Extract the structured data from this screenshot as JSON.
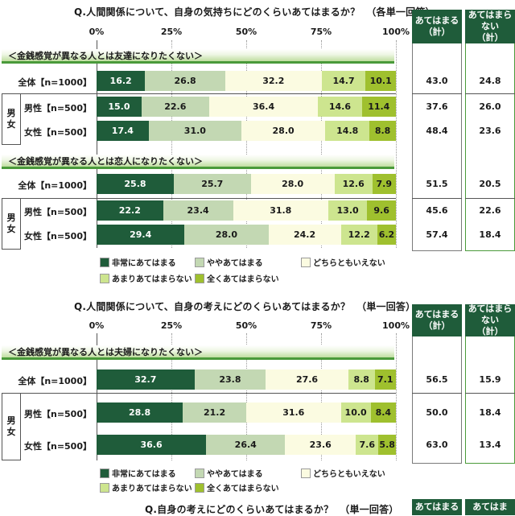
{
  "colors": {
    "segments": [
      "#1f5c3a",
      "#c3d8b3",
      "#fbfbe1",
      "#cde58f",
      "#9fc02e"
    ],
    "segment_text": [
      "#ffffff",
      "#1a1a1a",
      "#1a1a1a",
      "#1a1a1a",
      "#1a1a1a"
    ],
    "header_fill": "#1f5c3a",
    "section_rule": "#4a9a3a"
  },
  "legend_labels": [
    "非常にあてはまる",
    "ややあてはまる",
    "どちらともいえない",
    "あまりあてはまらない",
    "全くあてはまらない"
  ],
  "sex_box_label": [
    "男",
    "女"
  ],
  "chart_data": [
    {
      "type": "bar",
      "orientation": "horizontal-stacked-100",
      "title": "Q.人間関係について、自身の気持ちにどのくらいあてはまるか？",
      "subtitle": "（各単一回答）",
      "axis_ticks": [
        "0%",
        "25%",
        "50%",
        "75%",
        "100%"
      ],
      "xlim": [
        0,
        100
      ],
      "grid": true,
      "legend_position": "bottom",
      "series_names": [
        "非常にあてはまる",
        "ややあてはまる",
        "どちらともいえない",
        "あまりあてはまらない",
        "全くあてはまらない"
      ],
      "total_headers": [
        [
          "あてはまる",
          "（計）"
        ],
        [
          "あてはまら",
          "ない",
          "（計）"
        ]
      ],
      "sections": [
        {
          "title": "＜金銭感覚が異なる人とは友達になりたくない＞",
          "rows": [
            {
              "label": "全体【n=1000】",
              "values": [
                16.2,
                26.8,
                32.2,
                14.7,
                10.1
              ],
              "totals": [
                "43.0",
                "24.8"
              ]
            },
            {
              "label": "男性【n=500】",
              "values": [
                15.0,
                22.6,
                36.4,
                14.6,
                11.4
              ],
              "totals": [
                "37.6",
                "26.0"
              ]
            },
            {
              "label": "女性【n=500】",
              "values": [
                17.4,
                31.0,
                28.0,
                14.8,
                8.8
              ],
              "totals": [
                "48.4",
                "23.6"
              ]
            }
          ]
        },
        {
          "title": "＜金銭感覚が異なる人とは恋人になりたくない＞",
          "rows": [
            {
              "label": "全体【n=1000】",
              "values": [
                25.8,
                25.7,
                28.0,
                12.6,
                7.9
              ],
              "totals": [
                "51.5",
                "20.5"
              ]
            },
            {
              "label": "男性【n=500】",
              "values": [
                22.2,
                23.4,
                31.8,
                13.0,
                9.6
              ],
              "totals": [
                "45.6",
                "22.6"
              ]
            },
            {
              "label": "女性【n=500】",
              "values": [
                29.4,
                28.0,
                24.2,
                12.2,
                6.2
              ],
              "totals": [
                "57.4",
                "18.4"
              ]
            }
          ]
        }
      ]
    },
    {
      "type": "bar",
      "orientation": "horizontal-stacked-100",
      "title": "Q.人間関係について、自身の考えにどのくらいあてはまるか？",
      "subtitle": "（単一回答）",
      "axis_ticks": [
        "0%",
        "25%",
        "50%",
        "75%",
        "100%"
      ],
      "xlim": [
        0,
        100
      ],
      "grid": true,
      "legend_position": "bottom",
      "series_names": [
        "非常にあてはまる",
        "ややあてはまる",
        "どちらともいえない",
        "あまりあてはまらない",
        "全くあてはまらない"
      ],
      "total_headers": [
        [
          "あてはまる",
          "（計）"
        ],
        [
          "あてはまら",
          "ない",
          "（計）"
        ]
      ],
      "sections": [
        {
          "title": "＜金銭感覚が異なる人とは夫婦になりたくない＞",
          "rows": [
            {
              "label": "全体【n=1000】",
              "values": [
                32.7,
                23.8,
                27.6,
                8.8,
                7.1
              ],
              "totals": [
                "56.5",
                "15.9"
              ]
            },
            {
              "label": "男性【n=500】",
              "values": [
                28.8,
                21.2,
                31.6,
                10.0,
                8.4
              ],
              "totals": [
                "50.0",
                "18.4"
              ]
            },
            {
              "label": "女性【n=500】",
              "values": [
                36.6,
                26.4,
                23.6,
                7.6,
                5.8
              ],
              "totals": [
                "63.0",
                "13.4"
              ]
            }
          ]
        }
      ]
    },
    {
      "type": "bar",
      "title": "Q.自身の考えにどのくらいあてはまるか？",
      "subtitle": "（単一回答）",
      "total_headers": [
        [
          "あてはまる"
        ],
        [
          "あてはま"
        ]
      ]
    }
  ]
}
